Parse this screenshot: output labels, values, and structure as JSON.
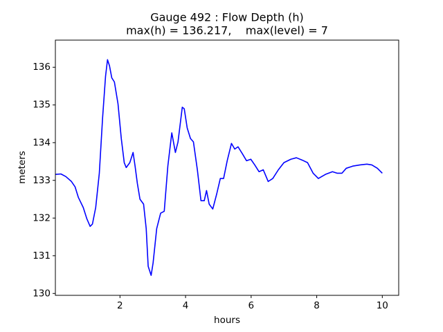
{
  "chart_data": {
    "type": "line",
    "title": "Gauge 492 : Flow Depth (h)",
    "subtitle": "max(h) = 136.217,    max(level) = 7",
    "xlabel": "hours",
    "ylabel": "meters",
    "xlim": [
      0.03,
      10.5
    ],
    "ylim": [
      129.95,
      136.72
    ],
    "xticks": [
      2,
      4,
      6,
      8,
      10
    ],
    "yticks": [
      130,
      131,
      132,
      133,
      134,
      135,
      136
    ],
    "grid": false,
    "series": [
      {
        "name": "h",
        "color": "blue",
        "x": [
          0.04,
          0.2,
          0.35,
          0.52,
          0.63,
          0.73,
          0.88,
          0.99,
          1.09,
          1.16,
          1.26,
          1.37,
          1.47,
          1.56,
          1.62,
          1.68,
          1.75,
          1.83,
          1.94,
          2.04,
          2.13,
          2.19,
          2.3,
          2.4,
          2.46,
          2.53,
          2.61,
          2.72,
          2.8,
          2.86,
          2.95,
          3.01,
          3.12,
          3.24,
          3.35,
          3.46,
          3.58,
          3.69,
          3.77,
          3.9,
          3.96,
          4.05,
          4.15,
          4.24,
          4.36,
          4.47,
          4.57,
          4.64,
          4.72,
          4.83,
          4.95,
          5.06,
          5.16,
          5.27,
          5.4,
          5.5,
          5.6,
          5.73,
          5.86,
          5.99,
          6.11,
          6.24,
          6.37,
          6.52,
          6.66,
          6.83,
          7.0,
          7.21,
          7.38,
          7.55,
          7.72,
          7.89,
          8.05,
          8.27,
          8.48,
          8.62,
          8.77,
          8.9,
          9.11,
          9.32,
          9.53,
          9.68,
          9.85,
          10.0
        ],
        "values": [
          133.16,
          133.17,
          133.1,
          132.97,
          132.83,
          132.55,
          132.28,
          131.98,
          131.78,
          131.84,
          132.28,
          133.19,
          134.66,
          135.76,
          136.2,
          136.04,
          135.72,
          135.61,
          135.03,
          134.11,
          133.47,
          133.34,
          133.47,
          133.74,
          133.38,
          132.92,
          132.5,
          132.37,
          131.72,
          130.72,
          130.48,
          130.81,
          131.72,
          132.13,
          132.18,
          133.38,
          134.26,
          133.74,
          134.02,
          134.94,
          134.9,
          134.39,
          134.11,
          134.02,
          133.28,
          132.46,
          132.46,
          132.73,
          132.37,
          132.24,
          132.64,
          133.05,
          133.05,
          133.52,
          133.98,
          133.83,
          133.89,
          133.71,
          133.52,
          133.56,
          133.41,
          133.23,
          133.28,
          132.97,
          133.05,
          133.28,
          133.47,
          133.56,
          133.6,
          133.54,
          133.47,
          133.19,
          133.05,
          133.16,
          133.23,
          133.19,
          133.19,
          133.32,
          133.38,
          133.41,
          133.43,
          133.41,
          133.32,
          133.19
        ]
      }
    ]
  }
}
